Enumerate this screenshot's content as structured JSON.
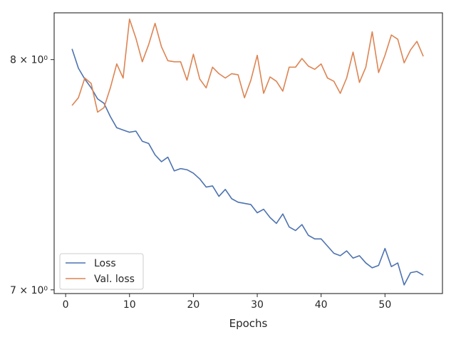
{
  "chart_data": {
    "type": "line",
    "xlabel": "Epochs",
    "ylabel": "",
    "yscale": "log",
    "xlim": [
      -1.8,
      59.0
    ],
    "ylim": [
      6.985,
      8.22
    ],
    "grid": false,
    "legend_position": "lower-left",
    "x_ticks": [
      0,
      10,
      20,
      30,
      40,
      50
    ],
    "x_tick_labels": [
      "0",
      "10",
      "20",
      "30",
      "40",
      "50"
    ],
    "y_ticks": [
      7,
      8
    ],
    "y_tick_labels": [
      "7 × 10⁰",
      "8 × 10⁰"
    ],
    "x": [
      1,
      2,
      3,
      4,
      5,
      6,
      7,
      8,
      9,
      10,
      11,
      12,
      13,
      14,
      15,
      16,
      17,
      18,
      19,
      20,
      21,
      22,
      23,
      24,
      25,
      26,
      27,
      28,
      29,
      30,
      31,
      32,
      33,
      34,
      35,
      36,
      37,
      38,
      39,
      40,
      41,
      42,
      43,
      44,
      45,
      46,
      47,
      48,
      49,
      50,
      51,
      52,
      53,
      54,
      55,
      56
    ],
    "series": [
      {
        "name": "Loss",
        "color": "#4c72b0",
        "values": [
          8.05,
          7.96,
          7.91,
          7.87,
          7.82,
          7.8,
          7.74,
          7.69,
          7.68,
          7.67,
          7.675,
          7.63,
          7.62,
          7.57,
          7.54,
          7.56,
          7.5,
          7.51,
          7.505,
          7.49,
          7.465,
          7.43,
          7.435,
          7.39,
          7.42,
          7.38,
          7.365,
          7.36,
          7.355,
          7.32,
          7.335,
          7.3,
          7.275,
          7.315,
          7.26,
          7.245,
          7.27,
          7.225,
          7.21,
          7.21,
          7.18,
          7.15,
          7.14,
          7.16,
          7.13,
          7.14,
          7.11,
          7.09,
          7.1,
          7.17,
          7.095,
          7.11,
          7.02,
          7.07,
          7.075,
          7.06
        ]
      },
      {
        "name": "Val. loss",
        "color": "#dd8452",
        "values": [
          7.79,
          7.825,
          7.915,
          7.89,
          7.76,
          7.78,
          7.87,
          7.98,
          7.915,
          8.19,
          8.1,
          7.99,
          8.07,
          8.17,
          8.06,
          7.995,
          7.99,
          7.99,
          7.905,
          8.025,
          7.91,
          7.87,
          7.965,
          7.935,
          7.915,
          7.935,
          7.93,
          7.825,
          7.905,
          8.02,
          7.845,
          7.92,
          7.9,
          7.855,
          7.965,
          7.965,
          8.005,
          7.97,
          7.955,
          7.98,
          7.915,
          7.9,
          7.845,
          7.915,
          8.035,
          7.895,
          7.965,
          8.13,
          7.94,
          8.02,
          8.115,
          8.095,
          7.985,
          8.045,
          8.085,
          8.015
        ]
      }
    ]
  }
}
